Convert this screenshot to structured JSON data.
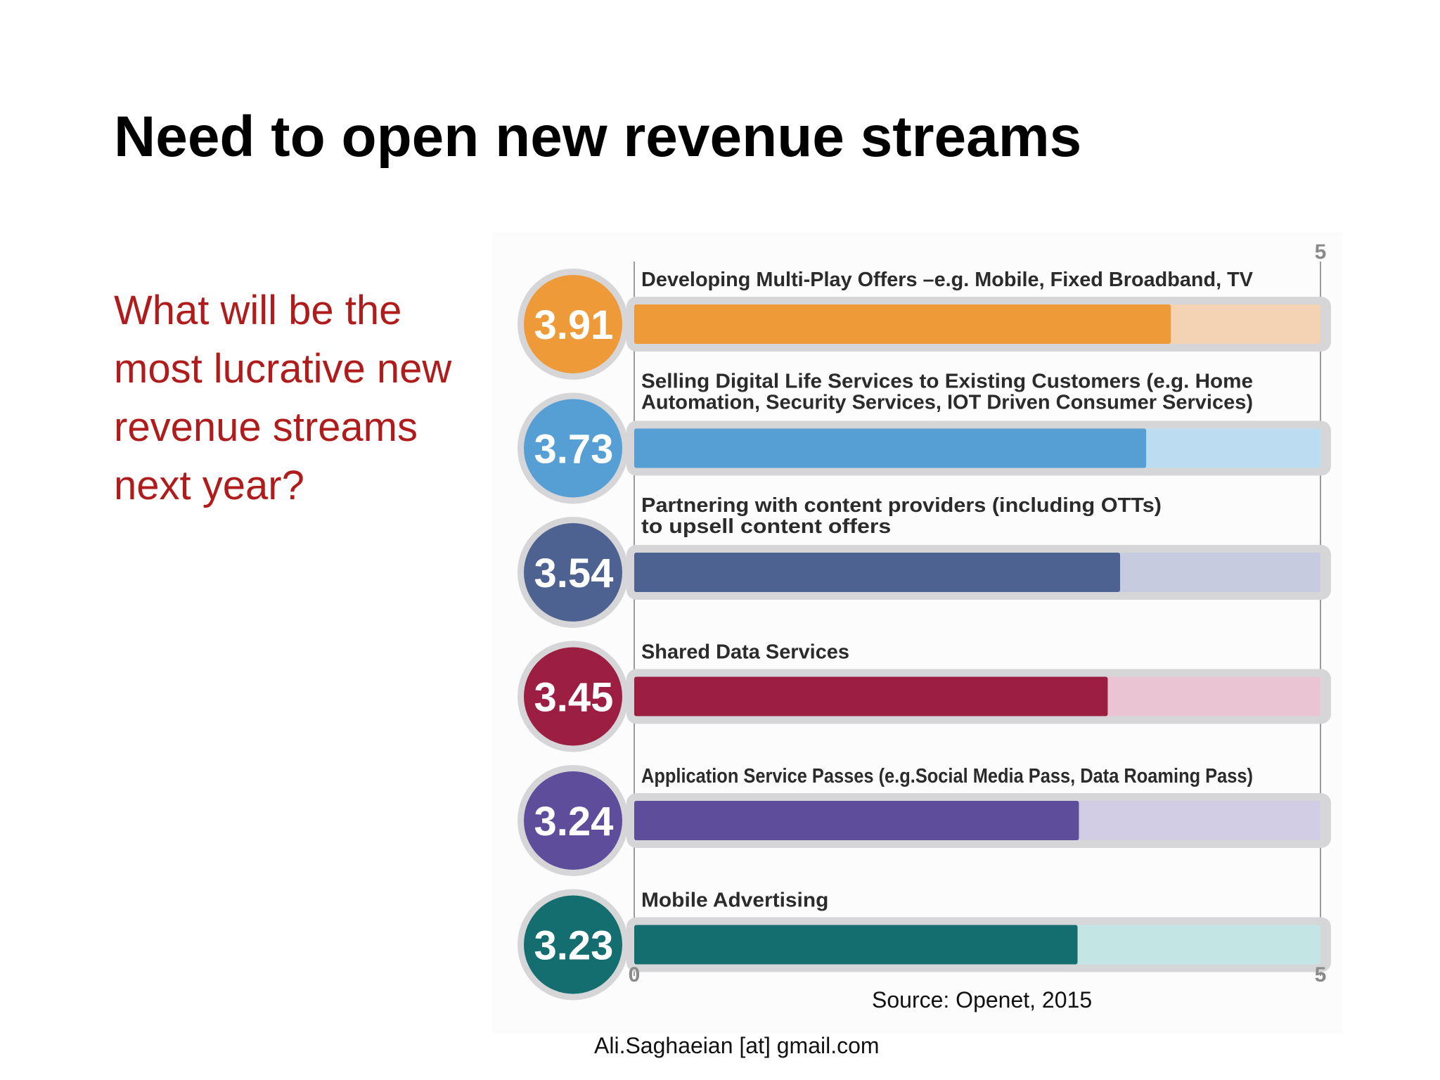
{
  "slide": {
    "title": "Need to open new revenue streams",
    "question": "What will be the most lucrative new revenue streams next year?",
    "source": "Source: Openet, 2015",
    "credit": "Ali.Saghaeian [at] gmail.com"
  },
  "chart_data": {
    "type": "bar",
    "orientation": "horizontal",
    "xlim": [
      0,
      5
    ],
    "axis_labels": {
      "min": "0",
      "max": "5",
      "top_max": "5"
    },
    "grid": false,
    "legend": "none",
    "categories": [
      [
        "Developing Multi-Play Offers –e.g. Mobile, Fixed Broadband, TV"
      ],
      [
        "Selling Digital Life Services to Existing Customers (e.g. Home",
        "Automation, Security Services, IOT Driven Consumer Services)"
      ],
      [
        "Partnering with content providers (including OTTs)",
        "to upsell content offers"
      ],
      [
        "Shared Data Services"
      ],
      [
        "Application Service Passes (e.g.Social Media Pass, Data Roaming Pass)"
      ],
      [
        "Mobile Advertising"
      ]
    ],
    "values": [
      3.91,
      3.73,
      3.54,
      3.45,
      3.24,
      3.23
    ],
    "value_labels": [
      "3.91",
      "3.73",
      "3.54",
      "3.45",
      "3.24",
      "3.23"
    ],
    "colors": [
      "#EE9A38",
      "#569FD5",
      "#4D6291",
      "#9C1E42",
      "#5E4D9B",
      "#146D6E"
    ],
    "track_colors": [
      "#F3D3B4",
      "#BCDDF1",
      "#C7CBE0",
      "#EAC4D3",
      "#D3CCE5",
      "#C3E6E5"
    ]
  }
}
